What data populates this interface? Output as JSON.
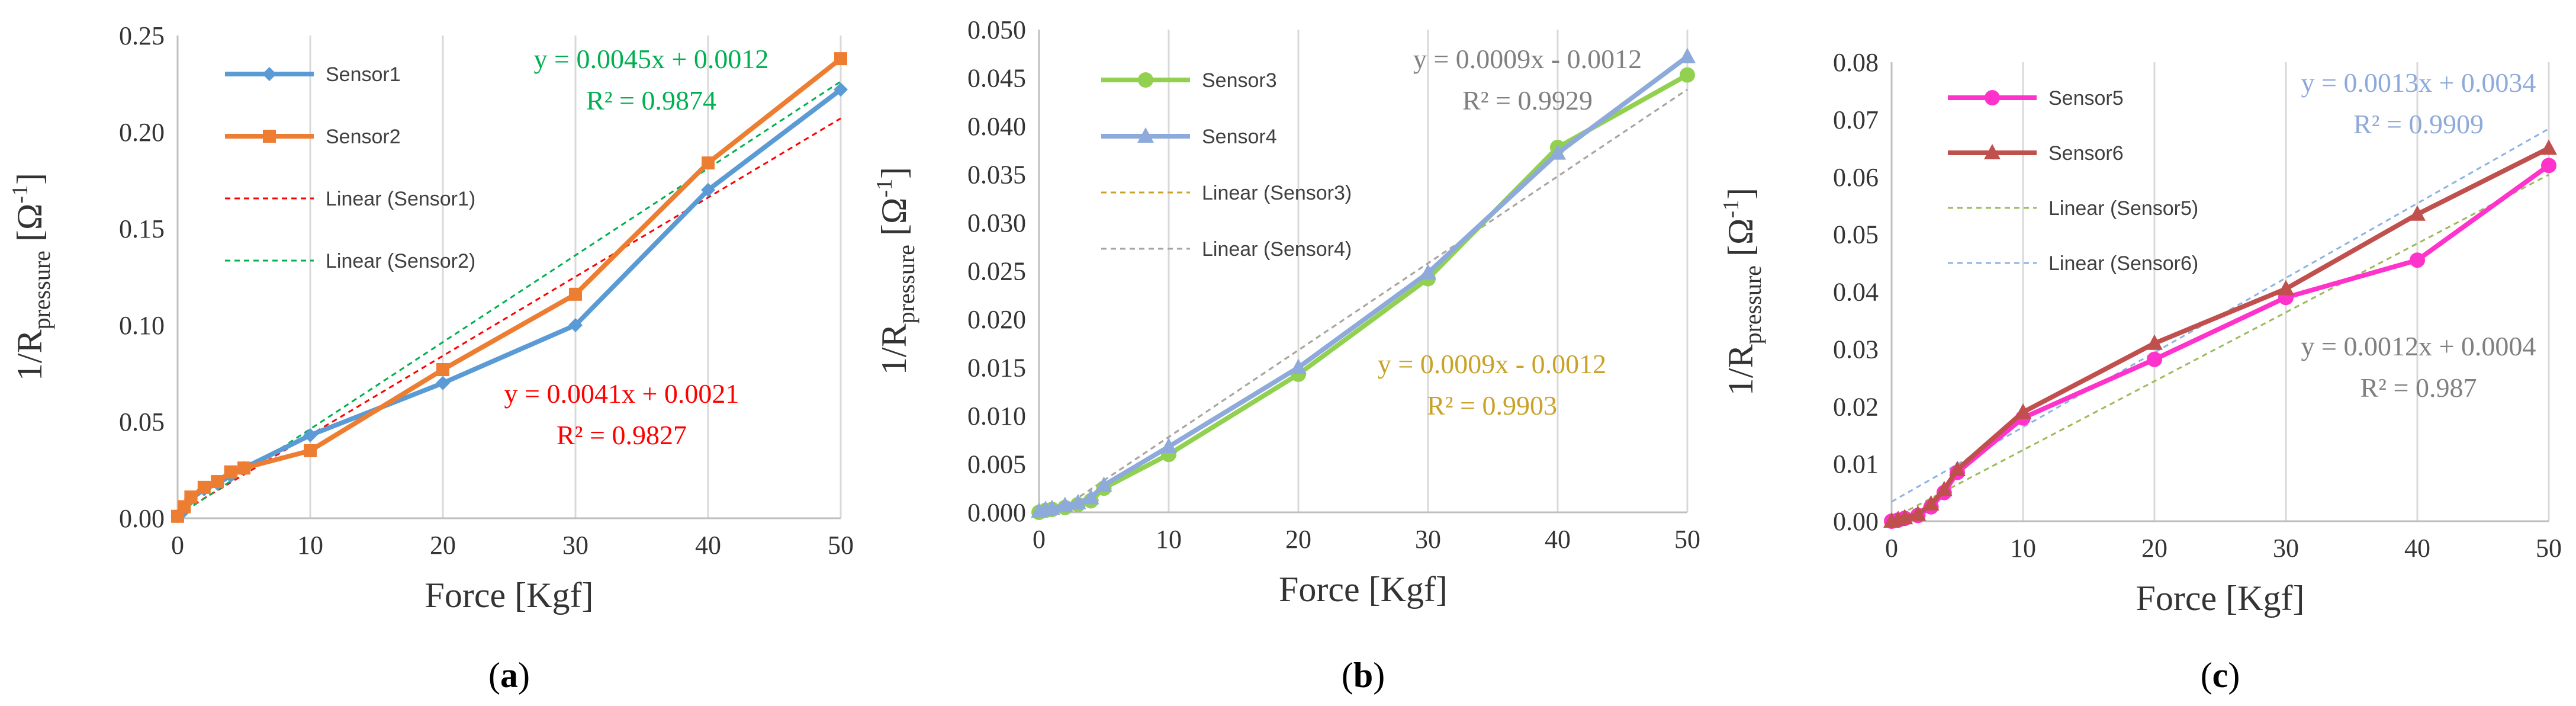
{
  "chart_data": [
    {
      "type": "line",
      "panel_label": "a",
      "xlabel": "Force [Kgf]",
      "ylabel": "1/R",
      "ylabel_sub": "pressure",
      "ylabel_unit": "[Ω",
      "ylabel_exp": "-1",
      "ylabel_close": "]",
      "xlim": [
        0,
        50
      ],
      "ylim": [
        0,
        0.25
      ],
      "xticks": [
        0,
        10,
        20,
        30,
        40,
        50
      ],
      "yticks": [
        0,
        0.05,
        0.1,
        0.15,
        0.2,
        0.25
      ],
      "ytick_labels": [
        "0.00",
        "0.05",
        "0.10",
        "0.15",
        "0.20",
        "0.25"
      ],
      "series": [
        {
          "name": "Sensor1",
          "color": "#5b9bd5",
          "marker": "diamond",
          "x": [
            0,
            0.5,
            1,
            2,
            3,
            4,
            5,
            10,
            20,
            30,
            40,
            50
          ],
          "y": [
            0.001,
            0.004,
            0.01,
            0.015,
            0.018,
            0.022,
            0.026,
            0.043,
            0.07,
            0.1,
            0.17,
            0.222
          ]
        },
        {
          "name": "Sensor2",
          "color": "#ed7d31",
          "marker": "square",
          "x": [
            0,
            0.5,
            1,
            2,
            3,
            4,
            5,
            10,
            20,
            30,
            40,
            50
          ],
          "y": [
            0.001,
            0.006,
            0.011,
            0.016,
            0.019,
            0.024,
            0.026,
            0.035,
            0.077,
            0.116,
            0.184,
            0.238
          ]
        }
      ],
      "trendlines": [
        {
          "name": "Linear (Sensor1)",
          "color": "#ff0000",
          "slope": 0.0041,
          "intercept": 0.0021
        },
        {
          "name": "Linear (Sensor2)",
          "color": "#00b050",
          "slope": 0.0045,
          "intercept": 0.0012
        }
      ],
      "equations": [
        {
          "line1": "y = 0.0045x + 0.0012",
          "line2": "R² = 0.9874",
          "color": "#00b050"
        },
        {
          "line1": "y = 0.0041x + 0.0021",
          "line2": "R² = 0.9827",
          "color": "#ff0000"
        }
      ]
    },
    {
      "type": "line",
      "panel_label": "b",
      "xlabel": "Force [Kgf]",
      "ylabel": "1/R",
      "ylabel_sub": "pressure",
      "ylabel_unit": "[Ω",
      "ylabel_exp": "-1",
      "ylabel_close": "]",
      "xlim": [
        0,
        50
      ],
      "ylim": [
        0,
        0.05
      ],
      "xticks": [
        0,
        10,
        20,
        30,
        40,
        50
      ],
      "yticks": [
        0,
        0.005,
        0.01,
        0.015,
        0.02,
        0.025,
        0.03,
        0.035,
        0.04,
        0.045,
        0.05
      ],
      "ytick_labels": [
        "0.000",
        "0.005",
        "0.010",
        "0.015",
        "0.020",
        "0.025",
        "0.030",
        "0.035",
        "0.040",
        "0.045",
        "0.050"
      ],
      "series": [
        {
          "name": "Sensor3",
          "color": "#92d050",
          "marker": "circle",
          "x": [
            0,
            0.5,
            1,
            2,
            3,
            4,
            5,
            10,
            20,
            30,
            40,
            50
          ],
          "y": [
            0,
            0.0002,
            0.0003,
            0.0005,
            0.0008,
            0.0012,
            0.0025,
            0.006,
            0.0143,
            0.0242,
            0.0378,
            0.0453
          ]
        },
        {
          "name": "Sensor4",
          "color": "#8eaadb",
          "marker": "triangle",
          "x": [
            0,
            0.5,
            1,
            2,
            3,
            4,
            5,
            10,
            20,
            30,
            40,
            50
          ],
          "y": [
            0.0001,
            0.0003,
            0.0004,
            0.0007,
            0.001,
            0.0015,
            0.0028,
            0.0068,
            0.015,
            0.0248,
            0.0372,
            0.0472
          ]
        }
      ],
      "trendlines": [
        {
          "name": "Linear (Sensor3)",
          "color": "#c9a227",
          "slope": 0.0009,
          "intercept": -0.0012
        },
        {
          "name": "Linear (Sensor4)",
          "color": "#a6a6a6",
          "slope": 0.0009,
          "intercept": -0.0012
        }
      ],
      "equations": [
        {
          "line1": "y = 0.0009x - 0.0012",
          "line2": "R² = 0.9929",
          "color": "#808080"
        },
        {
          "line1": "y = 0.0009x - 0.0012",
          "line2": "R² = 0.9903",
          "color": "#c9a227"
        }
      ]
    },
    {
      "type": "line",
      "panel_label": "c",
      "xlabel": "Force [Kgf]",
      "ylabel": "1/R",
      "ylabel_sub": "pressure",
      "ylabel_unit": "[Ω",
      "ylabel_exp": "-1",
      "ylabel_close": "]",
      "xlim": [
        0,
        50
      ],
      "ylim": [
        0,
        0.08
      ],
      "xticks": [
        0,
        10,
        20,
        30,
        40,
        50
      ],
      "yticks": [
        0,
        0.01,
        0.02,
        0.03,
        0.04,
        0.05,
        0.06,
        0.07,
        0.08
      ],
      "ytick_labels": [
        "0.00",
        "0.01",
        "0.02",
        "0.03",
        "0.04",
        "0.05",
        "0.06",
        "0.07",
        "0.08"
      ],
      "series": [
        {
          "name": "Sensor5",
          "color": "#ff33cc",
          "marker": "circle",
          "x": [
            0,
            0.5,
            1,
            2,
            3,
            4,
            5,
            10,
            20,
            30,
            40,
            50
          ],
          "y": [
            0,
            0.0002,
            0.0005,
            0.001,
            0.0025,
            0.005,
            0.0085,
            0.018,
            0.0282,
            0.039,
            0.0455,
            0.062
          ]
        },
        {
          "name": "Sensor6",
          "color": "#c0504d",
          "marker": "triangle",
          "x": [
            0,
            0.5,
            1,
            2,
            3,
            4,
            5,
            10,
            20,
            30,
            40,
            50
          ],
          "y": [
            0,
            0.0003,
            0.0006,
            0.0012,
            0.003,
            0.0055,
            0.009,
            0.019,
            0.031,
            0.0405,
            0.0535,
            0.065
          ]
        }
      ],
      "trendlines": [
        {
          "name": "Linear (Sensor5)",
          "color": "#9bbb59",
          "slope": 0.0012,
          "intercept": 0.0004
        },
        {
          "name": "Linear (Sensor6)",
          "color": "#8db3e2",
          "slope": 0.0013,
          "intercept": 0.0034
        }
      ],
      "equations": [
        {
          "line1": "y = 0.0013x + 0.0034",
          "line2": "R² = 0.9909",
          "color": "#8eaadb"
        },
        {
          "line1": "y = 0.0012x + 0.0004",
          "line2": "R² = 0.987",
          "color": "#808080"
        }
      ]
    }
  ]
}
